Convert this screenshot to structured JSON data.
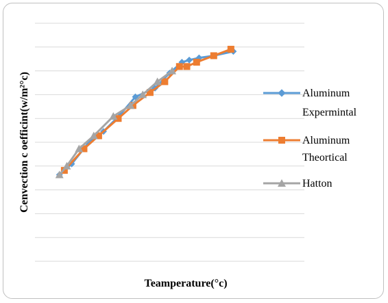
{
  "chart_data": {
    "type": "line",
    "title": "",
    "xlabel": "Teamperature(°c)",
    "ylabel": "Cenvection c oefficint(w/m²°c)",
    "x_ticks_shown": false,
    "y_ticks_shown": false,
    "grid": true,
    "legend_position": "right",
    "series": [
      {
        "name": "Aluminum Expermintal",
        "color": "#5b9bd5",
        "marker": "diamond",
        "points": [
          [
            40,
            0.04
          ],
          [
            45,
            0.045
          ],
          [
            52,
            0.055
          ],
          [
            58,
            0.06
          ],
          [
            65,
            0.068
          ],
          [
            71,
            0.076
          ],
          [
            79,
            0.08
          ],
          [
            85,
            0.087
          ],
          [
            90,
            0.092
          ],
          [
            93,
            0.093
          ],
          [
            97,
            0.094
          ],
          [
            103,
            0.095
          ],
          [
            111,
            0.097
          ]
        ]
      },
      {
        "name": "Aluminum Theortical",
        "color": "#ed7d31",
        "marker": "square",
        "points": [
          [
            42,
            0.042
          ],
          [
            50,
            0.052
          ],
          [
            56,
            0.058
          ],
          [
            64,
            0.066
          ],
          [
            70,
            0.072
          ],
          [
            77,
            0.078
          ],
          [
            83,
            0.083
          ],
          [
            89,
            0.09
          ],
          [
            92,
            0.09
          ],
          [
            96,
            0.092
          ],
          [
            103,
            0.095
          ],
          [
            110,
            0.098
          ]
        ]
      },
      {
        "name": "Hatton",
        "color": "#a5a5a5",
        "marker": "triangle",
        "points": [
          [
            40,
            0.04
          ],
          [
            43,
            0.044
          ],
          [
            48,
            0.052
          ],
          [
            54,
            0.058
          ],
          [
            62,
            0.067
          ],
          [
            69,
            0.072
          ],
          [
            74,
            0.077
          ],
          [
            80,
            0.083
          ],
          [
            86,
            0.088
          ]
        ]
      }
    ],
    "x_range": [
      30,
      140
    ],
    "y_range": [
      0,
      0.11
    ],
    "gridline_count": 10
  }
}
